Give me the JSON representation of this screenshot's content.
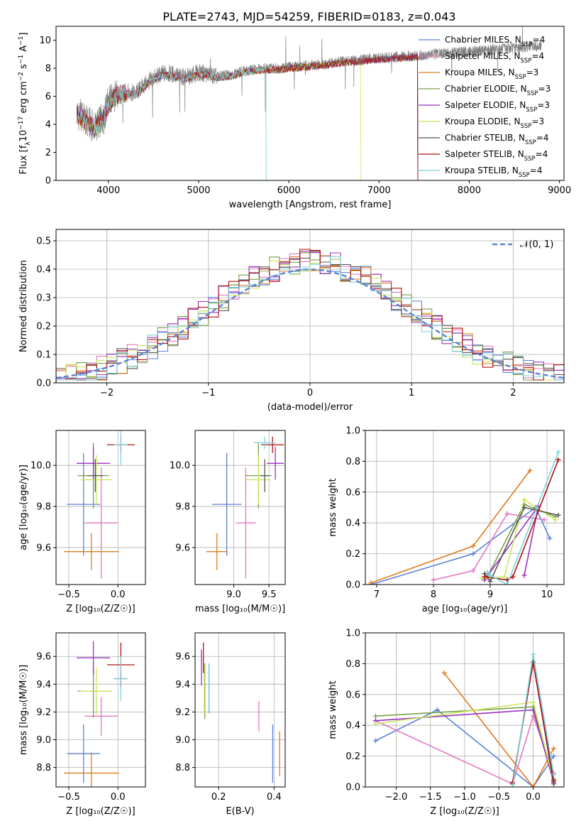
{
  "figure_title": "PLATE=2743, MJD=54259, FIBERID=0183, z=0.043",
  "colors": {
    "chabrier_miles": "#5b82d4",
    "salpeter_miles": "#e377c2",
    "kroupa_miles": "#e07b1d",
    "chabrier_elodie": "#7a9e4a",
    "salpeter_elodie": "#9b30c0",
    "kroupa_elodie": "#c8e85a",
    "chabrier_stelib": "#555555",
    "salpeter_stelib": "#b01010",
    "kroupa_stelib": "#7dd3dc",
    "data": "#808080",
    "gaussian": "#5b82d4"
  },
  "chart_data": [
    {
      "id": "spectrum",
      "type": "line",
      "title": "PLATE=2743, MJD=54259, FIBERID=0183, z=0.043",
      "xlabel": "wavelength [Angstrom, rest frame]",
      "ylabel_parts": [
        "Flux [f",
        "λ",
        "10",
        "−17",
        " erg cm",
        "−2",
        " s",
        "−1",
        " A",
        "−1",
        "]"
      ],
      "xlim": [
        3420,
        9050
      ],
      "ylim": [
        0,
        11
      ],
      "xticks": [
        4000,
        5000,
        6000,
        7000,
        8000,
        9000
      ],
      "yticks": [
        0,
        2,
        4,
        6,
        8,
        10
      ],
      "legend_position": "upper-right",
      "legend": [
        {
          "base": "Chabrier MILES, N",
          "sub": "SSP",
          "tail": "=4"
        },
        {
          "base": "Salpeter MILES, N",
          "sub": "SSP",
          "tail": "=4"
        },
        {
          "base": "Kroupa MILES, N",
          "sub": "SSP",
          "tail": "=3"
        },
        {
          "base": "Chabrier ELODIE, N",
          "sub": "SSP",
          "tail": "=3"
        },
        {
          "base": "Salpeter ELODIE, N",
          "sub": "SSP",
          "tail": "=3"
        },
        {
          "base": "Kroupa ELODIE, N",
          "sub": "SSP",
          "tail": "=3"
        },
        {
          "base": "Chabrier STELIB, N",
          "sub": "SSP",
          "tail": "=4"
        },
        {
          "base": "Salpeter STELIB, N",
          "sub": "SSP",
          "tail": "=4"
        },
        {
          "base": "Kroupa STELIB, N",
          "sub": "SSP",
          "tail": "=4"
        }
      ],
      "data_trend": [
        [
          3650,
          4.8
        ],
        [
          3700,
          4.6
        ],
        [
          3760,
          4.2
        ],
        [
          3850,
          3.8
        ],
        [
          3950,
          4.5
        ],
        [
          4000,
          5.6
        ],
        [
          4100,
          6.2
        ],
        [
          4200,
          6.3
        ],
        [
          4300,
          6.2
        ],
        [
          4400,
          6.8
        ],
        [
          4500,
          7.3
        ],
        [
          4600,
          7.6
        ],
        [
          4700,
          7.6
        ],
        [
          4800,
          7.4
        ],
        [
          4900,
          7.4
        ],
        [
          5000,
          7.7
        ],
        [
          5100,
          7.6
        ],
        [
          5200,
          7.4
        ],
        [
          5300,
          7.5
        ],
        [
          5400,
          7.6
        ],
        [
          5500,
          7.8
        ],
        [
          5600,
          7.9
        ],
        [
          5700,
          8.0
        ],
        [
          5800,
          8.0
        ],
        [
          5900,
          8.0
        ],
        [
          6000,
          8.1
        ],
        [
          6200,
          8.2
        ],
        [
          6400,
          8.3
        ],
        [
          6600,
          8.5
        ],
        [
          6800,
          8.6
        ],
        [
          7000,
          8.7
        ],
        [
          7200,
          8.8
        ],
        [
          7400,
          8.9
        ],
        [
          7600,
          9.0
        ],
        [
          7800,
          9.1
        ],
        [
          8000,
          9.2
        ],
        [
          8200,
          9.3
        ],
        [
          8400,
          9.4
        ],
        [
          8600,
          9.5
        ],
        [
          8800,
          9.6
        ]
      ],
      "model_xrange": [
        3650,
        7430
      ],
      "model_end": [
        3650,
        7430
      ]
    },
    {
      "id": "residuals",
      "type": "bar",
      "xlabel": "(data-model)/error",
      "ylabel": "Normed distribution",
      "xlim": [
        -2.5,
        2.5
      ],
      "ylim": [
        0,
        0.54
      ],
      "xticks": [
        -2,
        -1,
        0,
        1,
        2
      ],
      "xtick_labels": [
        "−2",
        "−1",
        "0",
        "1",
        "2"
      ],
      "yticks": [
        0.0,
        0.1,
        0.2,
        0.3,
        0.4,
        0.5
      ],
      "ytick_labels": [
        "0.0",
        "0.1",
        "0.2",
        "0.3",
        "0.4",
        "0.5"
      ],
      "grid": true,
      "bin_width": 0.1,
      "legend": "𝒩(0, 1)",
      "legend_position": "upper-right"
    },
    {
      "id": "age-vs-Z",
      "type": "scatter",
      "xlabel": "Z [log₁₀(Z/Z☉)]",
      "ylabel": "age  [log₁₀(age/yr)]",
      "xlim": [
        -0.63,
        0.28
      ],
      "ylim": [
        9.42,
        10.17
      ],
      "xticks": [
        -0.5,
        0.0
      ],
      "xtick_labels": [
        "−0.5",
        "0.0"
      ],
      "yticks": [
        9.6,
        9.8,
        10.0
      ],
      "ytick_labels": [
        "9.6",
        "9.8",
        "10.0"
      ],
      "points": [
        {
          "model": "chabrier_miles",
          "x": -0.35,
          "xerr": 0.17,
          "y": 9.81,
          "yerr": 0.25
        },
        {
          "model": "salpeter_miles",
          "x": -0.17,
          "xerr": 0.17,
          "y": 9.72,
          "yerr": 0.27
        },
        {
          "model": "kroupa_miles",
          "x": -0.27,
          "xerr": 0.28,
          "y": 9.58,
          "yerr": 0.09
        },
        {
          "model": "chabrier_elodie",
          "x": -0.25,
          "xerr": 0.16,
          "y": 9.95,
          "yerr": 0.16
        },
        {
          "model": "salpeter_elodie",
          "x": -0.25,
          "xerr": 0.17,
          "y": 10.01,
          "yerr": 0.08
        },
        {
          "model": "kroupa_elodie",
          "x": -0.22,
          "xerr": 0.16,
          "y": 9.93,
          "yerr": 0.12
        },
        {
          "model": "chabrier_stelib",
          "x": -0.23,
          "xerr": 0.08,
          "y": 9.95,
          "yerr": 0.08
        },
        {
          "model": "salpeter_stelib",
          "x": 0.03,
          "xerr": 0.14,
          "y": 10.1,
          "yerr": 0.04
        },
        {
          "model": "kroupa_stelib",
          "x": 0.03,
          "xerr": 0.07,
          "y": 10.1,
          "yerr": 0.1
        }
      ]
    },
    {
      "id": "age-vs-mass",
      "type": "scatter",
      "xlabel": "mass [log₁₀(M/M☉)]",
      "xlim": [
        8.45,
        9.73
      ],
      "ylim": [
        9.42,
        10.17
      ],
      "xticks": [
        9.0,
        9.5
      ],
      "xtick_labels": [
        "9.0",
        "9.5"
      ],
      "yticks": [
        9.6,
        9.8,
        10.0
      ],
      "ytick_labels": [
        "9.6",
        "9.8",
        "10.0"
      ],
      "points": [
        {
          "model": "chabrier_miles",
          "x": 8.9,
          "xerr": 0.21,
          "y": 9.81,
          "yerr": 0.25
        },
        {
          "model": "salpeter_miles",
          "x": 9.17,
          "xerr": 0.14,
          "y": 9.72,
          "yerr": 0.27
        },
        {
          "model": "kroupa_miles",
          "x": 8.76,
          "xerr": 0.15,
          "y": 9.58,
          "yerr": 0.09
        },
        {
          "model": "chabrier_elodie",
          "x": 9.35,
          "xerr": 0.19,
          "y": 9.95,
          "yerr": 0.16
        },
        {
          "model": "salpeter_elodie",
          "x": 9.59,
          "xerr": 0.12,
          "y": 10.01,
          "yerr": 0.08
        },
        {
          "model": "kroupa_elodie",
          "x": 9.35,
          "xerr": 0.17,
          "y": 9.93,
          "yerr": 0.12
        },
        {
          "model": "chabrier_stelib",
          "x": 9.44,
          "xerr": 0.06,
          "y": 9.95,
          "yerr": 0.08
        },
        {
          "model": "salpeter_stelib",
          "x": 9.55,
          "xerr": 0.16,
          "y": 10.1,
          "yerr": 0.04
        },
        {
          "model": "kroupa_stelib",
          "x": 9.44,
          "xerr": 0.16,
          "y": 10.11,
          "yerr": 0.03
        }
      ]
    },
    {
      "id": "mass-weight-vs-age",
      "type": "line",
      "xlabel": "age  [log₁₀(age/yr)]",
      "ylabel": "mass weight",
      "xlim": [
        6.8,
        10.3
      ],
      "ylim": [
        0,
        1
      ],
      "xticks": [
        7,
        8,
        9,
        10
      ],
      "yticks": [
        0.0,
        0.2,
        0.4,
        0.6,
        0.8,
        1.0
      ],
      "ytick_labels": [
        "0.0",
        "0.2",
        "0.4",
        "0.6",
        "0.8",
        "1.0"
      ],
      "series": [
        {
          "model": "chabrier_miles",
          "x": [
            6.9,
            8.7,
            9.8,
            10.05
          ],
          "y": [
            0.0,
            0.2,
            0.5,
            0.3
          ]
        },
        {
          "model": "kroupa_miles",
          "x": [
            6.9,
            8.7,
            9.7
          ],
          "y": [
            0.01,
            0.25,
            0.74
          ]
        },
        {
          "model": "salpeter_miles",
          "x": [
            8.0,
            8.7,
            9.3,
            9.95
          ],
          "y": [
            0.03,
            0.09,
            0.46,
            0.42
          ]
        },
        {
          "model": "chabrier_elodie",
          "x": [
            8.95,
            9.6,
            10.15
          ],
          "y": [
            0.05,
            0.52,
            0.44
          ]
        },
        {
          "model": "salpeter_elodie",
          "x": [
            8.9,
            9.85,
            9.6
          ],
          "y": [
            0.03,
            0.51,
            0.06
          ]
        },
        {
          "model": "kroupa_elodie",
          "x": [
            8.85,
            9.25,
            9.6,
            10.15
          ],
          "y": [
            0.04,
            0.05,
            0.55,
            0.42
          ]
        },
        {
          "model": "chabrier_stelib",
          "x": [
            8.9,
            9.0,
            9.6,
            10.2
          ],
          "y": [
            0.07,
            0.02,
            0.5,
            0.45
          ]
        },
        {
          "model": "salpeter_stelib",
          "x": [
            8.9,
            9.3,
            9.4,
            10.2
          ],
          "y": [
            0.05,
            0.03,
            0.05,
            0.81
          ]
        },
        {
          "model": "kroupa_stelib",
          "x": [
            8.95,
            9.0,
            9.3,
            10.2
          ],
          "y": [
            0.08,
            0.06,
            0.0,
            0.86
          ]
        }
      ]
    },
    {
      "id": "mass-vs-Z",
      "type": "scatter",
      "xlabel": "Z [log₁₀(Z/Z☉)]",
      "ylabel": "mass [log₁₀(M/M☉)]",
      "xlim": [
        -0.63,
        0.28
      ],
      "ylim": [
        8.66,
        9.77
      ],
      "xticks": [
        -0.5,
        0.0
      ],
      "xtick_labels": [
        "−0.5",
        "0.0"
      ],
      "yticks": [
        8.8,
        9.0,
        9.2,
        9.4,
        9.6
      ],
      "ytick_labels": [
        "8.8",
        "9.0",
        "9.2",
        "9.4",
        "9.6"
      ],
      "points": [
        {
          "model": "chabrier_miles",
          "x": -0.35,
          "xerr": 0.17,
          "y": 8.9,
          "yerr": 0.21
        },
        {
          "model": "salpeter_miles",
          "x": -0.17,
          "xerr": 0.17,
          "y": 9.17,
          "yerr": 0.14
        },
        {
          "model": "kroupa_miles",
          "x": -0.27,
          "xerr": 0.28,
          "y": 8.76,
          "yerr": 0.15
        },
        {
          "model": "chabrier_elodie",
          "x": -0.25,
          "xerr": 0.16,
          "y": 9.35,
          "yerr": 0.19
        },
        {
          "model": "salpeter_elodie",
          "x": -0.25,
          "xerr": 0.17,
          "y": 9.59,
          "yerr": 0.12
        },
        {
          "model": "kroupa_elodie",
          "x": -0.22,
          "xerr": 0.16,
          "y": 9.35,
          "yerr": 0.17
        },
        {
          "model": "chabrier_stelib",
          "x": 0.03,
          "xerr": 0.07,
          "y": 9.44,
          "yerr": 0.06
        },
        {
          "model": "salpeter_stelib",
          "x": 0.03,
          "xerr": 0.14,
          "y": 9.54,
          "yerr": 0.16
        },
        {
          "model": "kroupa_stelib",
          "x": 0.03,
          "xerr": 0.07,
          "y": 9.44,
          "yerr": 0.16
        }
      ]
    },
    {
      "id": "mass-vs-EBV",
      "type": "scatter",
      "xlabel": "E(B-V)",
      "xlim": [
        0.115,
        0.44
      ],
      "ylim": [
        8.66,
        9.77
      ],
      "xticks": [
        0.2,
        0.4
      ],
      "xtick_labels": [
        "0.2",
        "0.4"
      ],
      "yticks": [
        8.8,
        9.0,
        9.2,
        9.4,
        9.6
      ],
      "ytick_labels": [
        "8.8",
        "9.0",
        "9.2",
        "9.4",
        "9.6"
      ],
      "points": [
        {
          "model": "chabrier_miles",
          "x": 0.395,
          "y": 8.9,
          "yerr": 0.21
        },
        {
          "model": "salpeter_miles",
          "x": 0.345,
          "y": 9.17,
          "yerr": 0.11
        },
        {
          "model": "kroupa_miles",
          "x": 0.42,
          "y": 8.9,
          "yerr": 0.16
        },
        {
          "model": "chabrier_elodie",
          "x": 0.15,
          "y": 9.35,
          "yerr": 0.2
        },
        {
          "model": "salpeter_elodie",
          "x": 0.138,
          "y": 9.52,
          "yerr": 0.13
        },
        {
          "model": "kroupa_elodie",
          "x": 0.148,
          "y": 9.36,
          "yerr": 0.18
        },
        {
          "model": "chabrier_stelib",
          "x": 0.165,
          "y": 9.37,
          "yerr": 0.18
        },
        {
          "model": "salpeter_stelib",
          "x": 0.145,
          "y": 9.59,
          "yerr": 0.11
        },
        {
          "model": "kroupa_stelib",
          "x": 0.165,
          "y": 9.37,
          "yerr": 0.18
        }
      ]
    },
    {
      "id": "mass-weight-vs-Z",
      "type": "line",
      "xlabel": "Z [log₁₀(Z/Z☉)]",
      "ylabel": "mass weight",
      "xlim": [
        -2.45,
        0.45
      ],
      "ylim": [
        0,
        1
      ],
      "xticks": [
        -2.0,
        -1.5,
        -1.0,
        -0.5,
        0.0
      ],
      "xtick_labels": [
        "−2.0",
        "−1.5",
        "−1.0",
        "−0.5",
        "0.0"
      ],
      "yticks": [
        0.0,
        0.2,
        0.4,
        0.6,
        0.8,
        1.0
      ],
      "ytick_labels": [
        "0.0",
        "0.2",
        "0.4",
        "0.6",
        "0.8",
        "1.0"
      ],
      "series": [
        {
          "model": "chabrier_miles",
          "x": [
            -2.3,
            -1.4,
            0.0,
            0.3
          ],
          "y": [
            0.3,
            0.5,
            0.0,
            0.2
          ]
        },
        {
          "model": "kroupa_miles",
          "x": [
            -1.3,
            0.0,
            0.3
          ],
          "y": [
            0.74,
            0.0,
            0.25
          ]
        },
        {
          "model": "salpeter_miles",
          "x": [
            -2.3,
            -0.3,
            0.0,
            0.3
          ],
          "y": [
            0.43,
            0.02,
            0.46,
            0.09
          ]
        },
        {
          "model": "chabrier_elodie",
          "x": [
            -2.3,
            0.0,
            0.3
          ],
          "y": [
            0.46,
            0.52,
            0.05
          ]
        },
        {
          "model": "salpeter_elodie",
          "x": [
            -2.3,
            0.0,
            0.3
          ],
          "y": [
            0.43,
            0.5,
            0.03
          ]
        },
        {
          "model": "kroupa_elodie",
          "x": [
            -2.3,
            0.0,
            0.3
          ],
          "y": [
            0.41,
            0.55,
            0.04
          ]
        },
        {
          "model": "chabrier_stelib",
          "x": [
            -0.3,
            0.0,
            0.3
          ],
          "y": [
            0.02,
            0.81,
            0.02
          ]
        },
        {
          "model": "salpeter_stelib",
          "x": [
            -0.3,
            0.0,
            0.3
          ],
          "y": [
            0.03,
            0.81,
            0.04
          ]
        },
        {
          "model": "kroupa_stelib",
          "x": [
            -0.3,
            0.0,
            0.3
          ],
          "y": [
            0.0,
            0.86,
            0.08
          ]
        }
      ]
    }
  ]
}
